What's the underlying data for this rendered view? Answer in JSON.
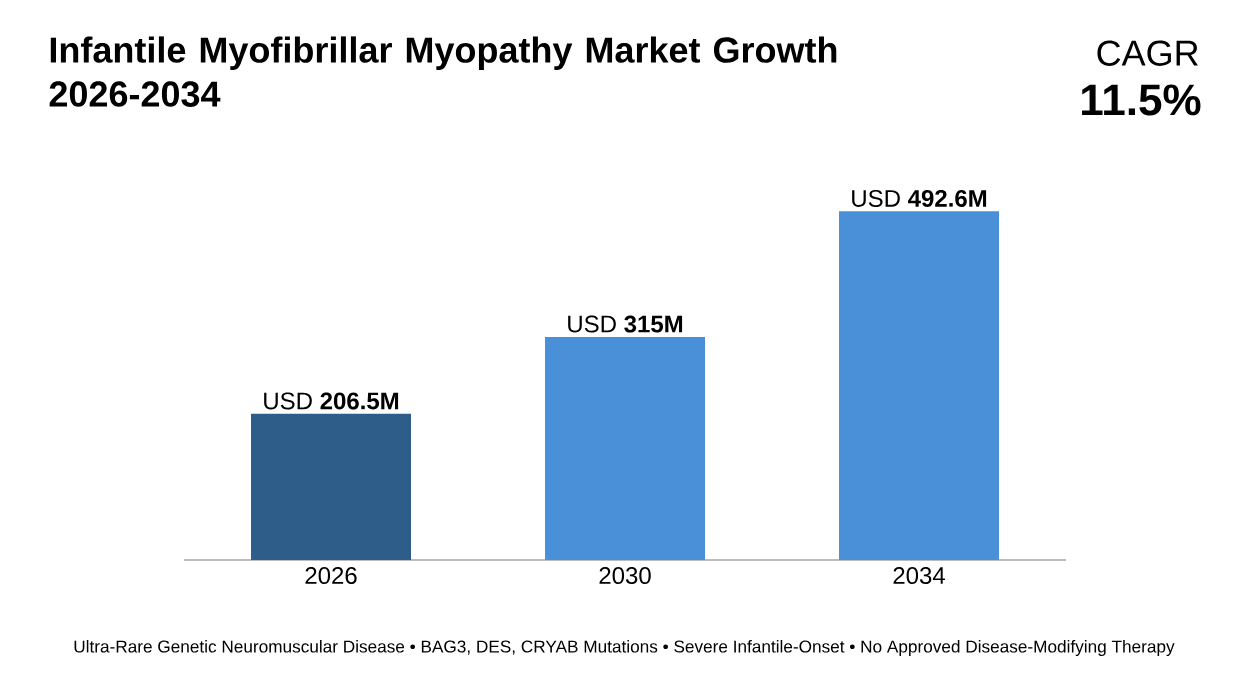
{
  "chart_data": {
    "type": "bar",
    "title": "Infantile Myofibrillar Myopathy Market Growth 2026-2034",
    "categories": [
      "2026",
      "2030",
      "2034"
    ],
    "values": [
      206.5,
      315,
      492.6
    ],
    "colors": [
      "#2f5d8a",
      "#4a90d9",
      "#4a90d9"
    ],
    "value_labels": [
      "USD **206.5M**",
      "USD **315M**",
      "USD **492.6M**"
    ],
    "ylim": [
      0,
      500
    ],
    "tick_labels": "x",
    "annotations": [
      "CAGR",
      "**11.5%**",
      "Ultra-Rare Genetic Neuromuscular Disease • BAG3, DES, CRYAB Mutations • Severe Infantile-Onset • No Approved Disease-Modifying Therapy"
    ]
  }
}
